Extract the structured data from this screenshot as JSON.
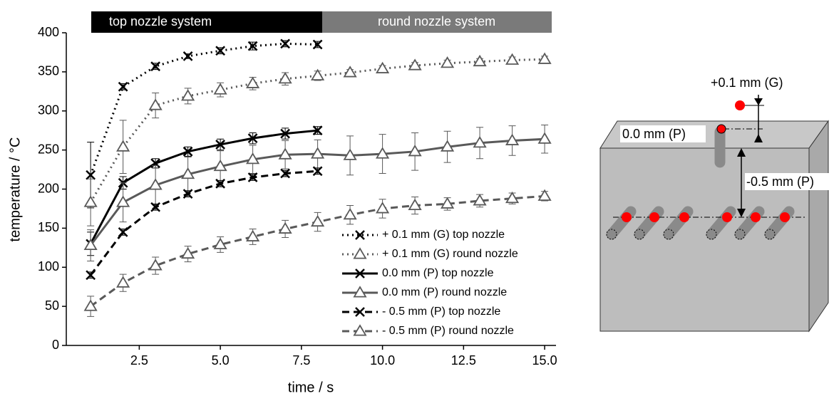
{
  "chart_data": {
    "type": "line",
    "xlabel": "time / s",
    "ylabel": "temperature / °C",
    "annotations": [
      "top nozzle system",
      "round nozzle system"
    ],
    "xlim": [
      0.25,
      15.35
    ],
    "ylim": [
      0,
      400
    ],
    "xticks": [
      2.5,
      {
        "value": 5,
        "label": "5.0"
      },
      7.5,
      {
        "value": 10,
        "label": "10.0"
      },
      12.5,
      {
        "value": 15,
        "label": "15.0"
      }
    ],
    "yticks": [
      0,
      50,
      100,
      150,
      200,
      250,
      300,
      350,
      400
    ],
    "legend": "lower right",
    "series": [
      {
        "name": "+ 0.1 mm (G) top nozzle",
        "color": "#000000",
        "dash": "dotted",
        "marker": "x",
        "x": [
          1,
          2,
          3,
          4,
          5,
          6,
          7,
          8
        ],
        "values": [
          218,
          331,
          357,
          370,
          377,
          383,
          386,
          385
        ],
        "errors": [
          42,
          4,
          4,
          3,
          4,
          5,
          4,
          4
        ]
      },
      {
        "name": "+ 0.1 mm (G) round nozzle",
        "color": "#595959",
        "dash": "dotted",
        "marker": "triangle",
        "x": [
          1,
          2,
          3,
          4,
          5,
          6,
          7,
          8,
          9,
          10,
          11,
          12,
          13,
          14,
          15
        ],
        "values": [
          183,
          254,
          307,
          319,
          327,
          335,
          341,
          345,
          349,
          354,
          358,
          361,
          363,
          365,
          366
        ],
        "errors": [
          30,
          34,
          16,
          10,
          9,
          8,
          8,
          6,
          4,
          4,
          4,
          4,
          4,
          4,
          4
        ]
      },
      {
        "name": "0.0 mm (P) top nozzle",
        "color": "#000000",
        "dash": "solid",
        "marker": "x",
        "x": [
          1,
          2,
          3,
          4,
          5,
          6,
          7,
          8
        ],
        "values": [
          130,
          208,
          233,
          248,
          257,
          265,
          271,
          275
        ],
        "errors": [
          15,
          8,
          6,
          6,
          7,
          7,
          7,
          5
        ]
      },
      {
        "name": "0.0 mm (P) round nozzle",
        "color": "#595959",
        "dash": "solid",
        "marker": "triangle",
        "x": [
          1,
          2,
          3,
          4,
          5,
          6,
          7,
          8,
          9,
          10,
          11,
          12,
          13,
          14,
          15
        ],
        "values": [
          128,
          183,
          205,
          219,
          229,
          238,
          244,
          245,
          243,
          245,
          248,
          254,
          259,
          262,
          264
        ],
        "errors": [
          20,
          25,
          25,
          22,
          20,
          18,
          18,
          18,
          25,
          25,
          24,
          20,
          20,
          19,
          18
        ]
      },
      {
        "name": "- 0.5 mm (P) top nozzle",
        "color": "#000000",
        "dash": "dashed",
        "marker": "x",
        "x": [
          1,
          2,
          3,
          4,
          5,
          6,
          7,
          8
        ],
        "values": [
          90,
          145,
          177,
          194,
          207,
          215,
          220,
          223
        ],
        "errors": [
          4,
          4,
          4,
          4,
          4,
          4,
          4,
          4
        ]
      },
      {
        "name": "- 0.5 mm (P) round nozzle",
        "color": "#595959",
        "dash": "dashed",
        "marker": "triangle",
        "x": [
          1,
          2,
          3,
          4,
          5,
          6,
          7,
          8,
          9,
          10,
          11,
          12,
          13,
          14,
          15
        ],
        "values": [
          50,
          80,
          102,
          117,
          129,
          139,
          149,
          158,
          167,
          175,
          179,
          181,
          185,
          188,
          191
        ],
        "errors": [
          13,
          11,
          11,
          10,
          10,
          10,
          11,
          12,
          12,
          12,
          11,
          8,
          8,
          7,
          6
        ]
      }
    ]
  },
  "diagram": {
    "labels": [
      "+0.1 mm (G)",
      "0.0 mm (P)",
      "-0.5 mm (P)"
    ]
  }
}
